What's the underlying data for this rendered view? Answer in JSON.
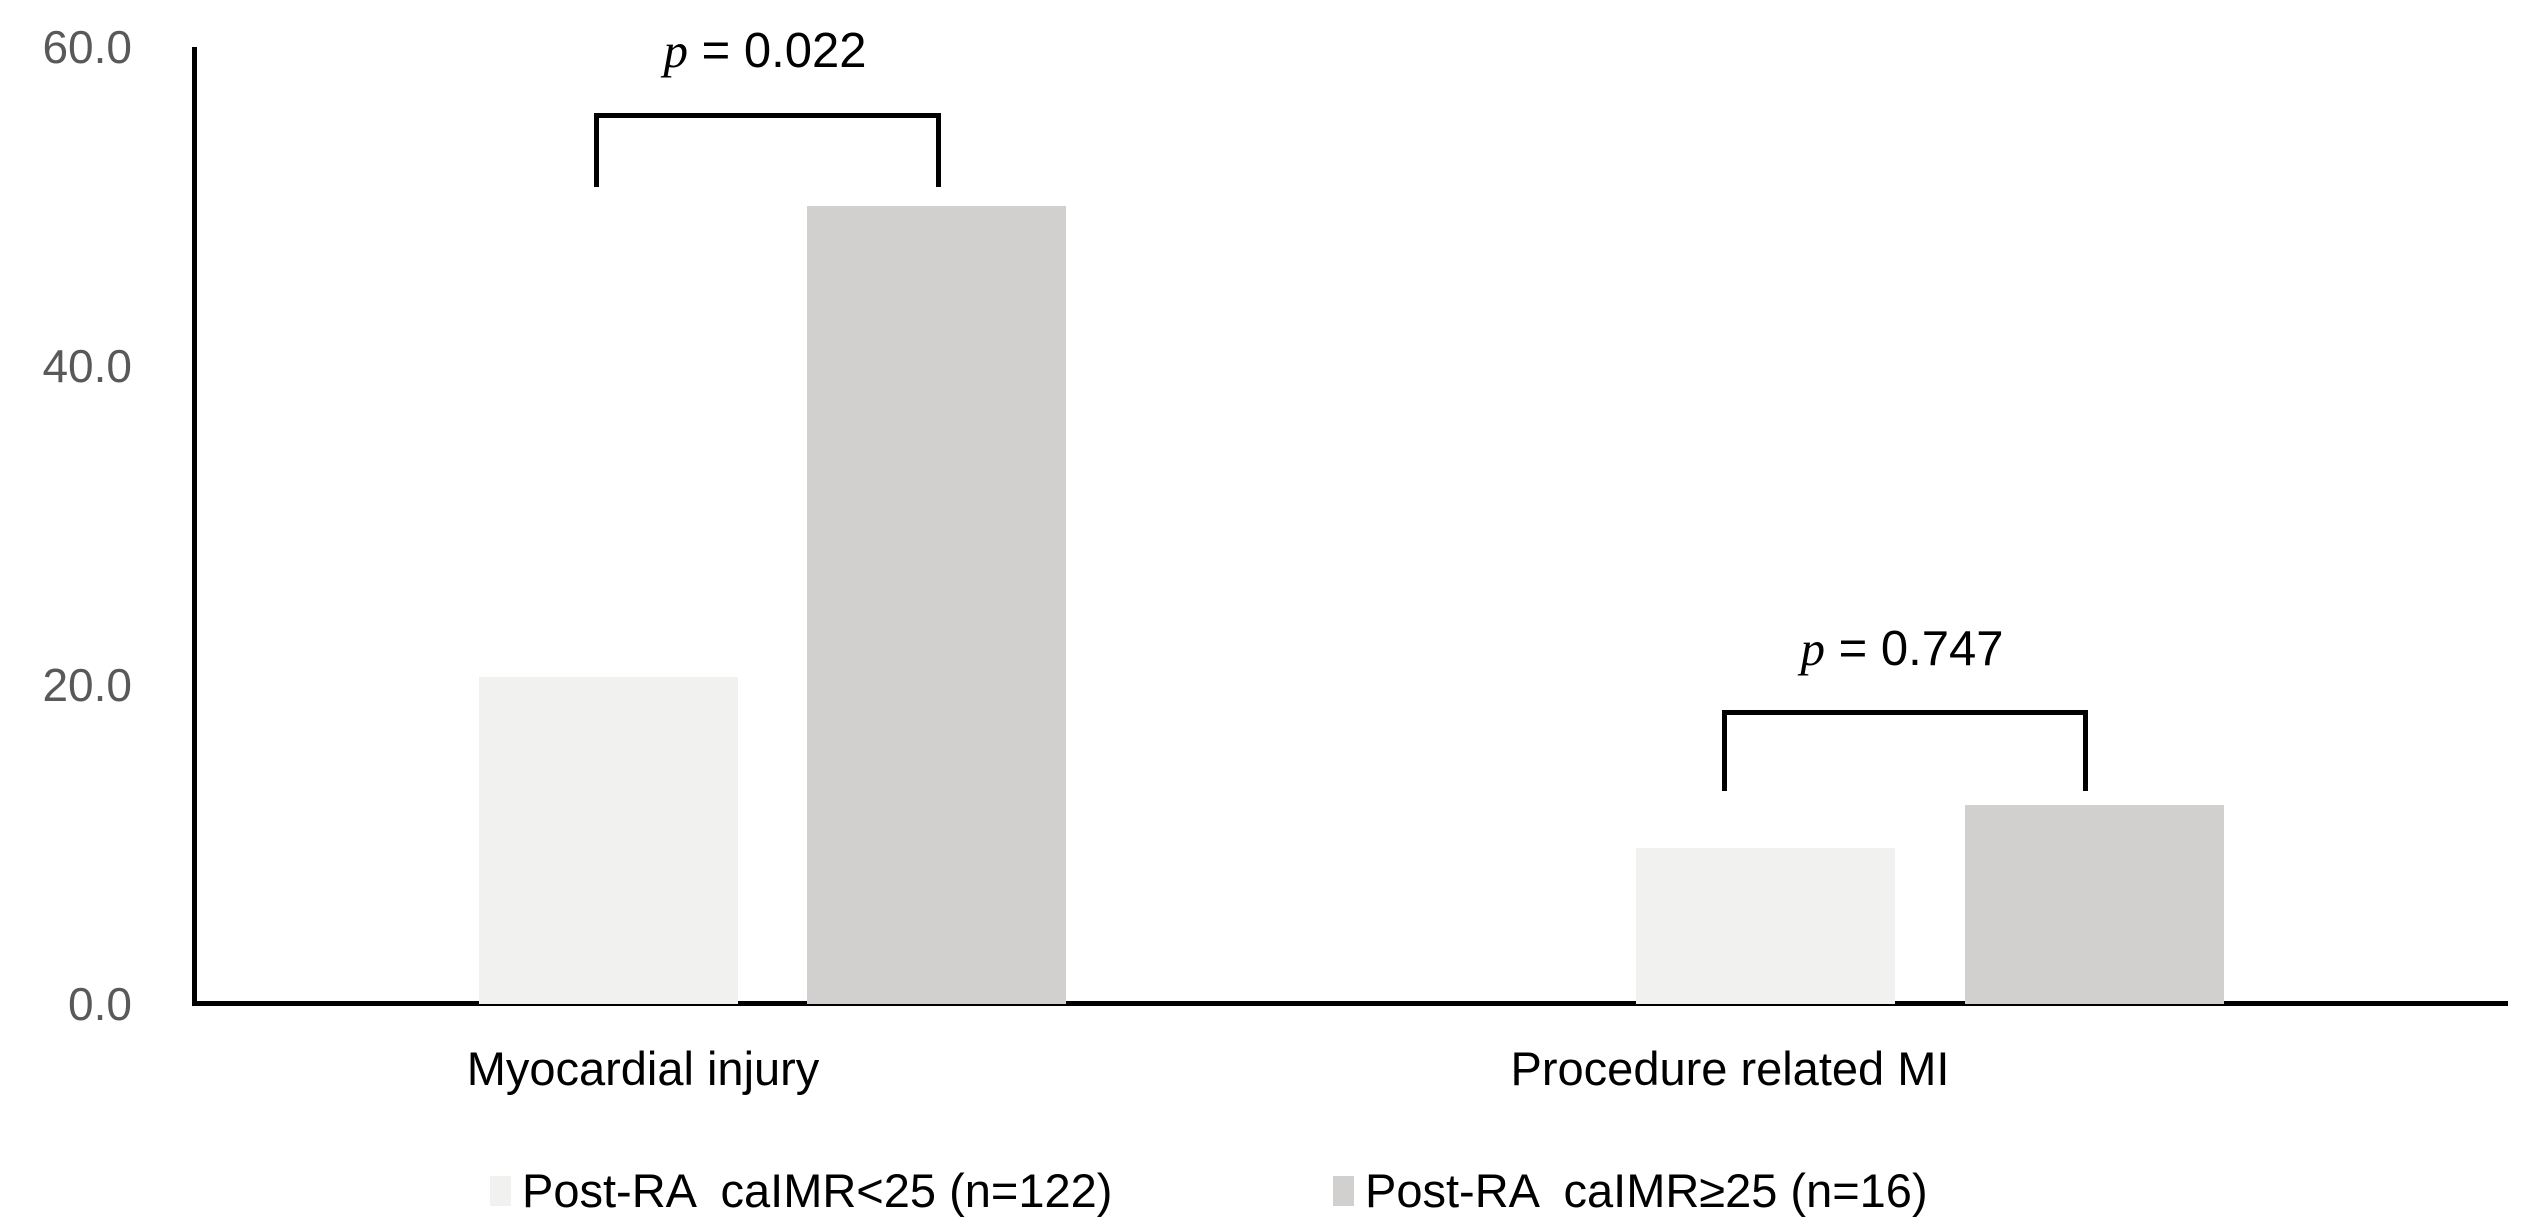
{
  "figure": {
    "background_color": "#ffffff",
    "axis_line_color": "#000000",
    "tick_label_color": "#595959",
    "bracket_color": "#000000"
  },
  "chart_data": {
    "type": "bar",
    "title": "",
    "xlabel": "",
    "ylabel": "",
    "categories": [
      "Myocardial injury",
      "Procedure related MI"
    ],
    "series": [
      {
        "name": "Post-RA  caIMR<25 (n=122)",
        "color": "#f1f1f0",
        "values": [
          20.5,
          9.8
        ]
      },
      {
        "name": "Post-RA  caIMR≥25 (n=16)",
        "color": "#d1d0ce",
        "values": [
          50.0,
          12.5
        ]
      }
    ],
    "ylim": [
      0,
      60
    ],
    "yticks": [
      60,
      40,
      20,
      0
    ],
    "ytick_labels": [
      "60.0",
      "40.0",
      "20.0",
      "0.0"
    ],
    "grid": false,
    "legend_position": "bottom",
    "annotations": [
      {
        "category": "Myocardial injury",
        "p_symbol": "p",
        "p_rest": " = 0.022"
      },
      {
        "category": "Procedure related MI",
        "p_symbol": "p",
        "p_rest": " = 0.747"
      }
    ]
  }
}
